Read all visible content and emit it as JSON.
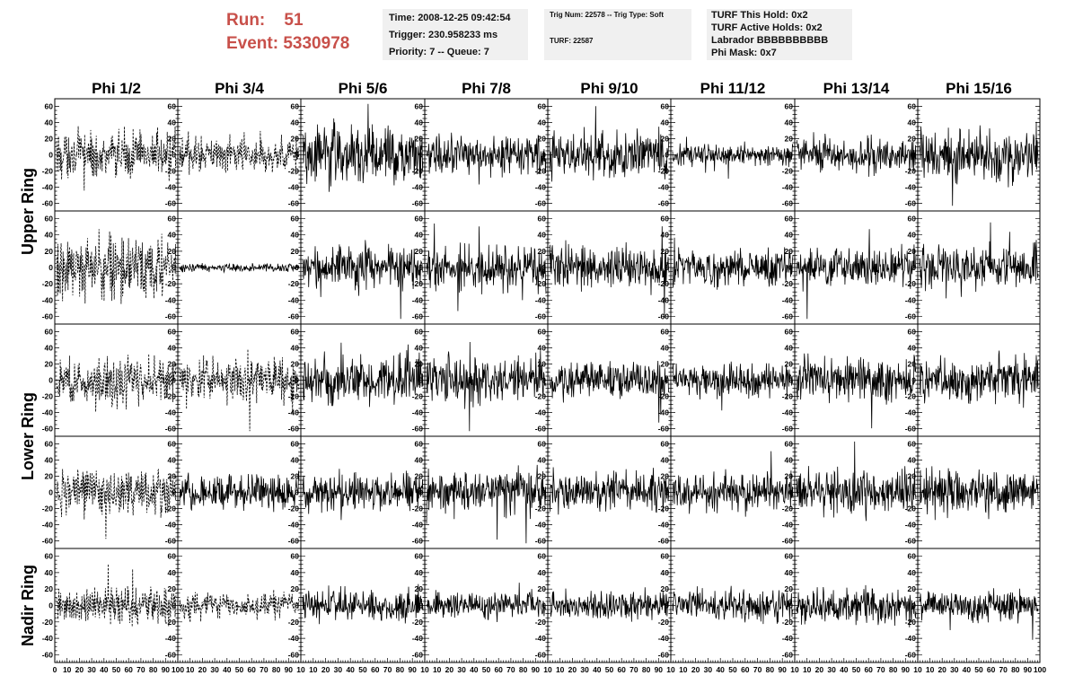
{
  "header": {
    "run_label": "Run:",
    "run_value": "51",
    "event_label": "Event:",
    "event_value": "5330978"
  },
  "info_boxes": {
    "time": "Time: 2008-12-25 09:42:54",
    "trigger": "Trigger: 230.958233 ms",
    "priority": "Priority: 7 -- Queue: 7",
    "trig_num": "Trig Num: 22578 -- Trig Type: Soft",
    "turf": "TURF: 22587",
    "turf_this_hold": "TURF This Hold: 0x2",
    "turf_active_holds": "TURF Active Holds: 0x2",
    "labrador": "Labrador BBBBBBBBBB",
    "phi_mask": "Phi Mask: 0x7"
  },
  "colors": {
    "title_red": "#c8504a",
    "info_bg": "#f0f0f0",
    "trace": "#000000"
  },
  "chart_data": {
    "type": "line",
    "columns": [
      "Phi 1/2",
      "Phi 3/4",
      "Phi 5/6",
      "Phi 7/8",
      "Phi 9/10",
      "Phi 11/12",
      "Phi 13/14",
      "Phi 15/16"
    ],
    "rows": [
      "Upper Ring",
      "Lower Ring",
      "Nadir Ring"
    ],
    "ylim": [
      -65,
      65
    ],
    "y_ticks": [
      -60,
      -40,
      -20,
      0,
      20,
      40,
      60
    ],
    "xlim": [
      0,
      100
    ],
    "x_ticks_first": [
      "0",
      "10",
      "20",
      "30",
      "40",
      "50",
      "60",
      "70",
      "80",
      "90",
      "100"
    ],
    "x_ticks_other": [
      "10",
      "20",
      "30",
      "40",
      "50",
      "60",
      "70",
      "80",
      "90",
      "10"
    ],
    "x_ticks_last": [
      "10",
      "20",
      "30",
      "40",
      "50",
      "60",
      "70",
      "80",
      "90",
      "100"
    ],
    "n_samples": 260,
    "panels": [
      [
        {
          "amp": 17,
          "dashed": true
        },
        {
          "amp": 13,
          "dashed": true
        },
        {
          "amp": 22,
          "dashed": false
        },
        {
          "amp": 14,
          "dashed": false
        },
        {
          "amp": 17,
          "dashed": false
        },
        {
          "amp": 8,
          "dashed": false
        },
        {
          "amp": 13,
          "dashed": false
        },
        {
          "amp": 20,
          "dashed": false
        }
      ],
      [
        {
          "amp": 22,
          "dashed": true
        },
        {
          "amp": 3,
          "dashed": false
        },
        {
          "amp": 16,
          "dashed": false
        },
        {
          "amp": 16,
          "dashed": false
        },
        {
          "amp": 15,
          "dashed": false
        },
        {
          "amp": 13,
          "dashed": false
        },
        {
          "amp": 14,
          "dashed": false
        },
        {
          "amp": 17,
          "dashed": false
        }
      ],
      [
        {
          "amp": 18,
          "dashed": true
        },
        {
          "amp": 16,
          "dashed": true
        },
        {
          "amp": 17,
          "dashed": false
        },
        {
          "amp": 17,
          "dashed": false
        },
        {
          "amp": 14,
          "dashed": false
        },
        {
          "amp": 12,
          "dashed": false
        },
        {
          "amp": 16,
          "dashed": false
        },
        {
          "amp": 16,
          "dashed": false
        }
      ],
      [
        {
          "amp": 17,
          "dashed": true
        },
        {
          "amp": 14,
          "dashed": false
        },
        {
          "amp": 14,
          "dashed": false
        },
        {
          "amp": 17,
          "dashed": false
        },
        {
          "amp": 16,
          "dashed": false
        },
        {
          "amp": 14,
          "dashed": false
        },
        {
          "amp": 16,
          "dashed": false
        },
        {
          "amp": 17,
          "dashed": false
        }
      ],
      [
        {
          "amp": 14,
          "dashed": true
        },
        {
          "amp": 9,
          "dashed": true
        },
        {
          "amp": 12,
          "dashed": false
        },
        {
          "amp": 10,
          "dashed": false
        },
        {
          "amp": 10,
          "dashed": false
        },
        {
          "amp": 12,
          "dashed": false
        },
        {
          "amp": 13,
          "dashed": false
        },
        {
          "amp": 12,
          "dashed": false
        }
      ]
    ]
  }
}
